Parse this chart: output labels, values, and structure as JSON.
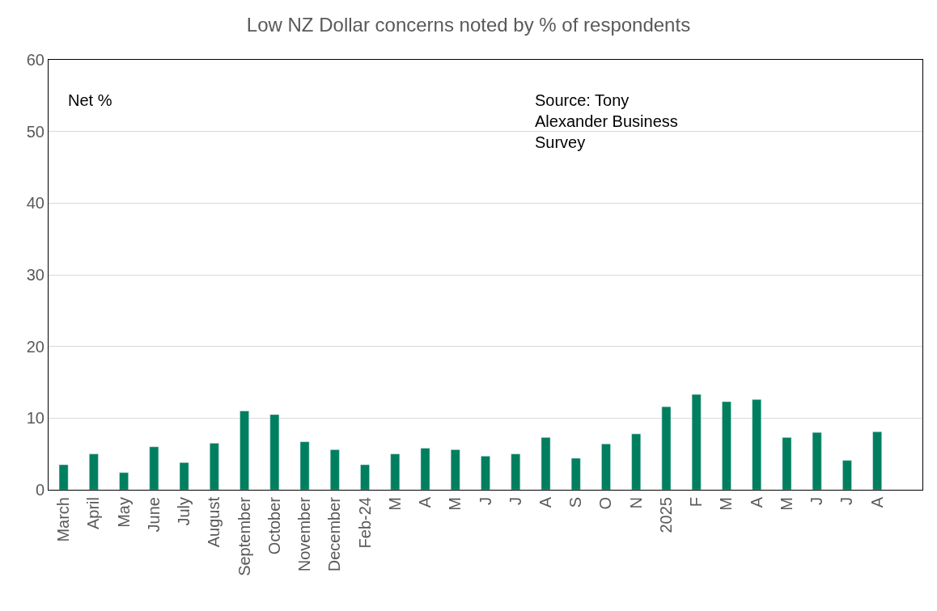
{
  "chart_data": {
    "type": "bar",
    "title": "Low NZ Dollar concerns noted by % of respondents",
    "categories": [
      "March",
      "April",
      "May",
      "June",
      "July",
      "August",
      "September",
      "October",
      "November",
      "December",
      "Feb-24",
      "M",
      "A",
      "M",
      "J",
      "J",
      "A",
      "S",
      "O",
      "N",
      "2025",
      "F",
      "M",
      "A",
      "M",
      "J",
      "J",
      "A",
      null
    ],
    "series": [
      {
        "color": "#007f5f",
        "values": [
          3.5,
          5.0,
          2.4,
          6.0,
          3.8,
          6.5,
          11.0,
          10.5,
          6.7,
          5.6,
          3.5,
          5.0,
          5.8,
          5.6,
          4.7,
          5.0,
          7.3,
          4.4,
          6.4,
          7.8,
          11.6,
          13.3,
          12.3,
          12.6,
          7.3,
          8.0,
          4.1,
          8.1,
          null
        ]
      }
    ],
    "ylim": [
      0,
      60
    ],
    "yticks": [
      0,
      10,
      20,
      30,
      40,
      50,
      60
    ],
    "grid": "y",
    "legend": false,
    "annotations": [
      "Net %",
      "Source: Tony Alexander Business Survey"
    ]
  }
}
